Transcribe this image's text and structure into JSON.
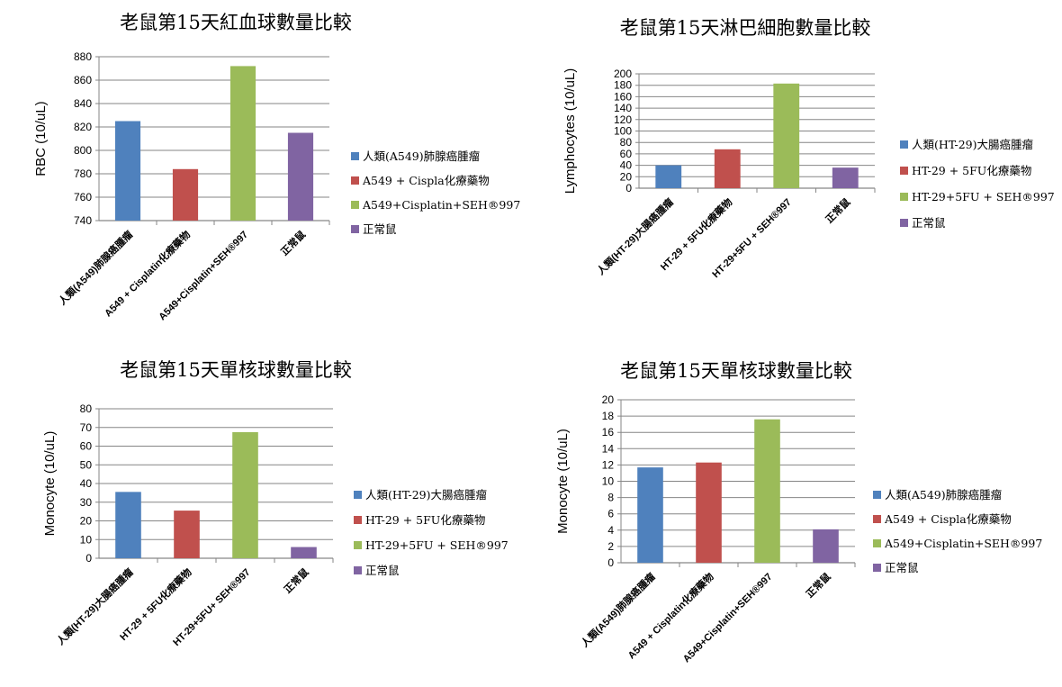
{
  "colors": {
    "blue": "#4F81BD",
    "red": "#C0504D",
    "green": "#9BBB59",
    "purple": "#8064A2",
    "grid": "#868686"
  },
  "chart_data": [
    {
      "type": "bar",
      "title": "老鼠第15天紅血球數量比較",
      "ylabel": "RBC (10/uL)",
      "xlabel": "",
      "ylim": [
        740,
        880
      ],
      "ystep": 20,
      "grid": true,
      "legend_position": "right",
      "categories": [
        "人類(A549)肺腺癌腫瘤",
        "A549 + Cisplatin化療藥物",
        "A549+Cisplatin+SEH®997",
        "正常鼠"
      ],
      "values": [
        825,
        784,
        872,
        815
      ],
      "legend": [
        "人類(A549)肺腺癌腫瘤",
        "A549 + Cispla化療藥物",
        "A549+Cisplatin+SEH®997",
        "正常鼠"
      ]
    },
    {
      "type": "bar",
      "title": "老鼠第15天淋巴細胞數量比較",
      "ylabel": "Lymphocytes (10/uL)",
      "xlabel": "",
      "ylim": [
        0,
        200
      ],
      "ystep": 20,
      "grid": true,
      "legend_position": "right",
      "categories": [
        "人類(HT-29)大腸癌腫瘤",
        "HT-29 + 5FU化療藥物",
        "HT-29+5FU + SEH®997",
        "正常鼠"
      ],
      "values": [
        40,
        68,
        183,
        36
      ],
      "legend": [
        "人類(HT-29)大腸癌腫瘤",
        "HT-29 + 5FU化療藥物",
        "HT-29+5FU + SEH®997",
        "正常鼠"
      ]
    },
    {
      "type": "bar",
      "title": "老鼠第15天單核球數量比較",
      "ylabel": "Monocyte (10/uL)",
      "xlabel": "",
      "ylim": [
        0,
        80
      ],
      "ystep": 10,
      "grid": true,
      "legend_position": "right",
      "categories": [
        "人類(HT-29)大腸癌腫瘤",
        "HT-29 + 5FU化療藥物",
        "HT-29+5FU+ SEH®997",
        "正常鼠"
      ],
      "values": [
        35.5,
        25.5,
        67.5,
        6
      ],
      "legend": [
        "人類(HT-29)大腸癌腫瘤",
        "HT-29 + 5FU化療藥物",
        "HT-29+5FU + SEH®997",
        "正常鼠"
      ]
    },
    {
      "type": "bar",
      "title": "老鼠第15天單核球數量比較",
      "ylabel": "Monocyte (10/uL)",
      "xlabel": "",
      "ylim": [
        0,
        20
      ],
      "ystep": 2,
      "grid": true,
      "legend_position": "right",
      "categories": [
        "人類(A549)肺腺癌腫瘤",
        "A549 + Cisplatin化療藥物",
        "A549+Cisplatin+SEH®997",
        "正常鼠"
      ],
      "values": [
        11.7,
        12.3,
        17.6,
        4.1
      ],
      "legend": [
        "人類(A549)肺腺癌腫瘤",
        "A549 + Cispla化療藥物",
        "A549+Cisplatin+SEH®997",
        "正常鼠"
      ]
    }
  ]
}
